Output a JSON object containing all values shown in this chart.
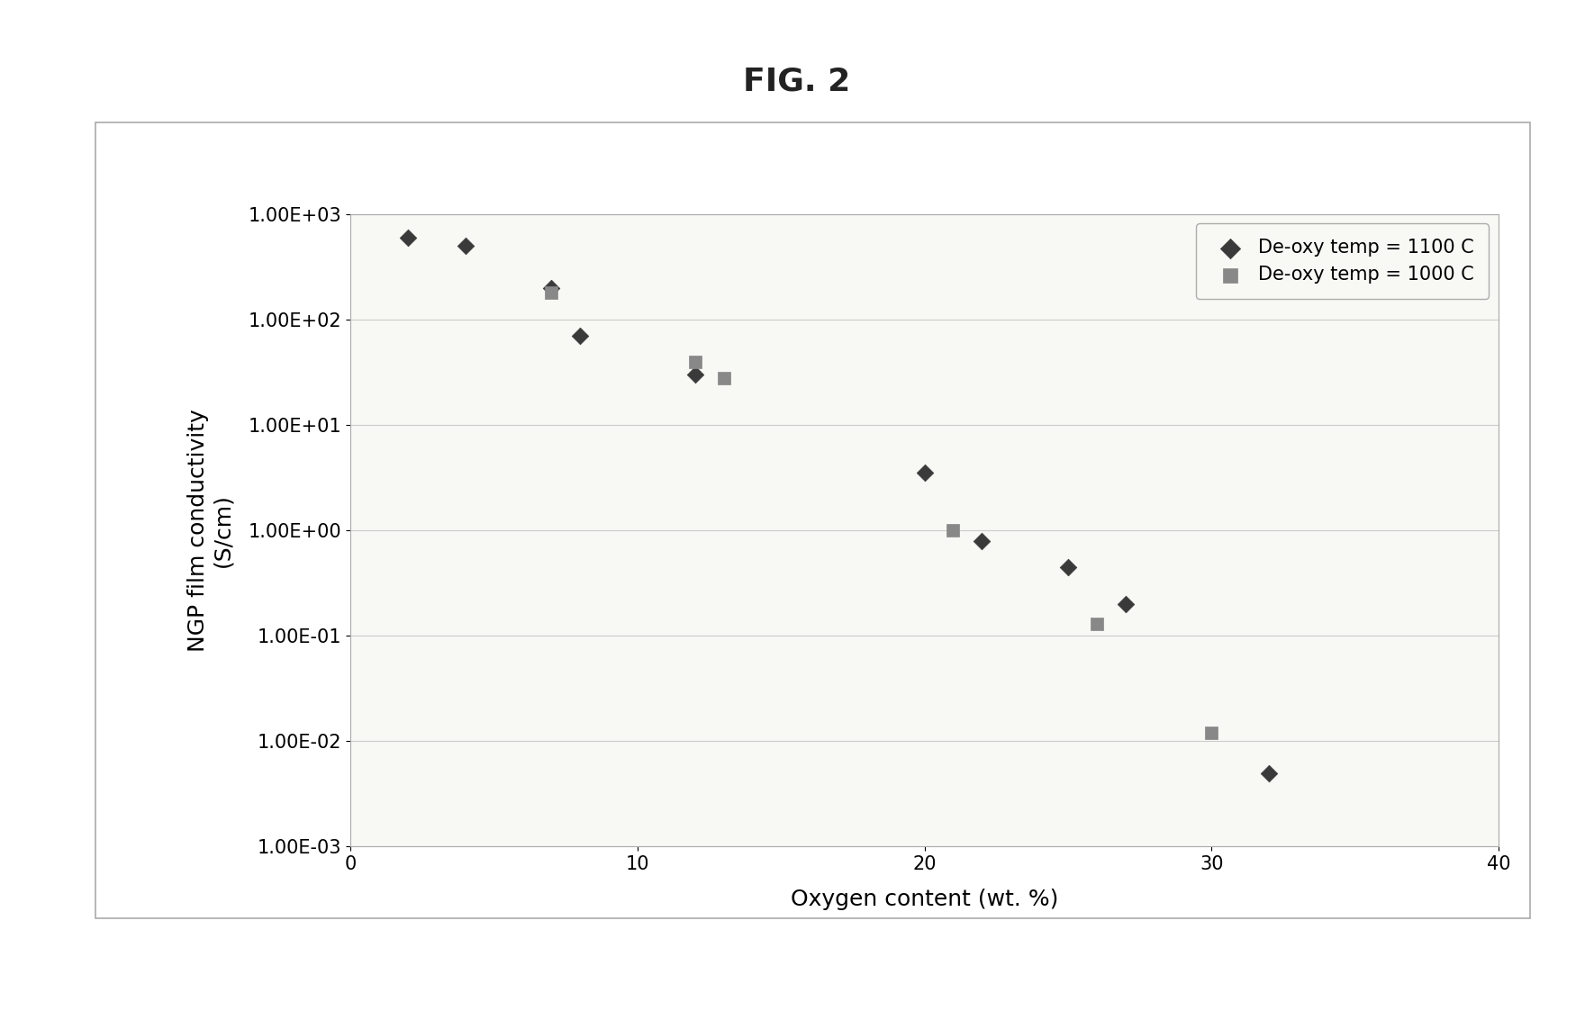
{
  "title": "FIG. 2",
  "xlabel": "Oxygen content (wt. %)",
  "ylabel": "NGP film conductivity\n(S/cm)",
  "xlim": [
    0,
    40
  ],
  "ylim_log": [
    -3,
    3
  ],
  "series_1100": {
    "label": "De-oxy temp = 1100 C",
    "color": "#3a3a3a",
    "marker": "D",
    "x": [
      2,
      4,
      7,
      8,
      12,
      20,
      22,
      25,
      27,
      32
    ],
    "y": [
      600,
      500,
      200,
      70,
      30,
      3.5,
      0.8,
      0.45,
      0.2,
      0.005
    ]
  },
  "series_1000": {
    "label": "De-oxy temp = 1000 C",
    "color": "#888888",
    "marker": "s",
    "x": [
      7,
      12,
      13,
      21,
      26,
      30
    ],
    "y": [
      180,
      40,
      28,
      1.0,
      0.13,
      0.012
    ]
  },
  "fig_bg_color": "#ffffff",
  "outer_box_color": "#cccccc",
  "plot_bg_color": "#f8f8f5",
  "grid_color": "#cccccc",
  "title_fontsize": 26,
  "label_fontsize": 18,
  "tick_fontsize": 15,
  "legend_fontsize": 15
}
